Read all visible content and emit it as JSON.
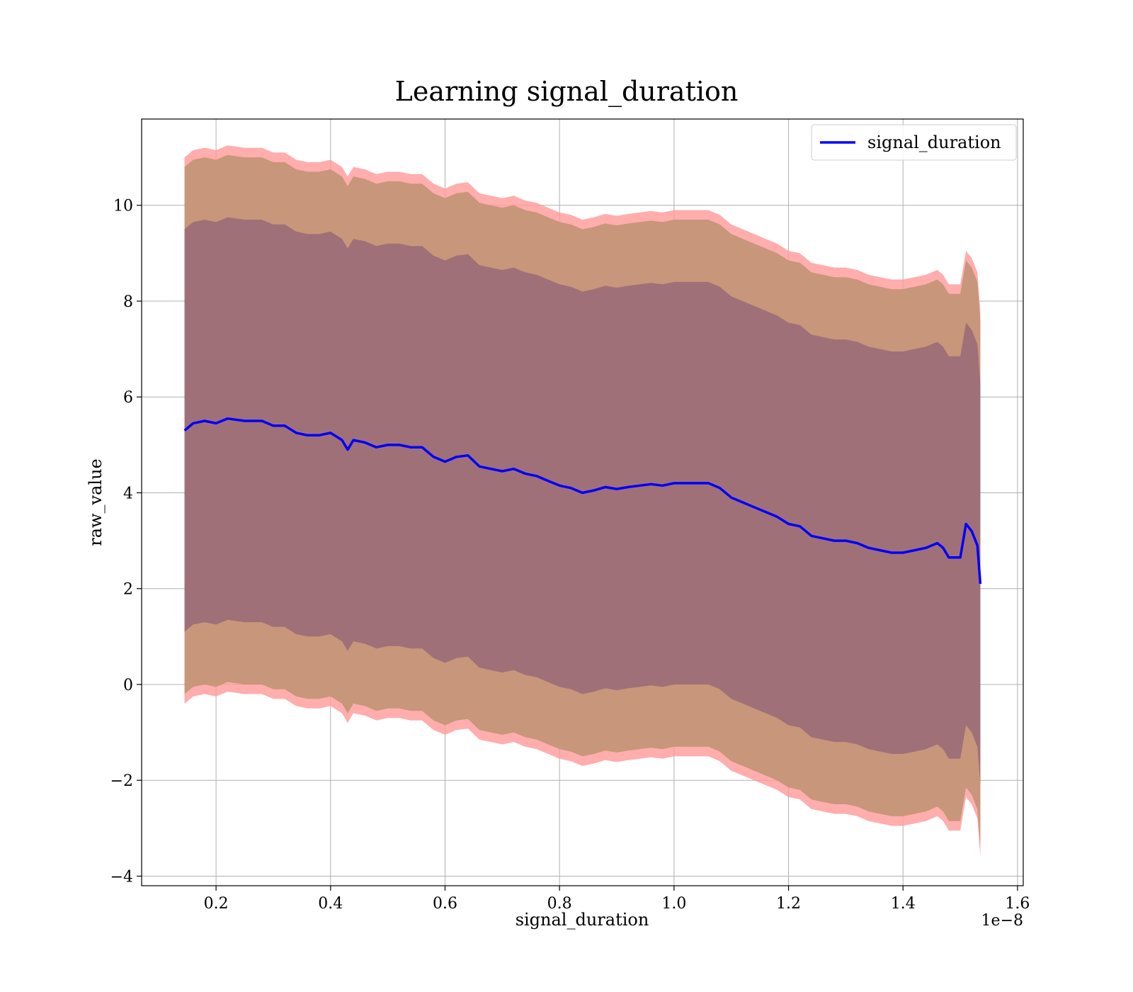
{
  "chart_data": {
    "type": "line",
    "title": "Learning signal_duration",
    "xlabel": "signal_duration",
    "ylabel": "raw_value",
    "x_offset_label": "1e−8",
    "xlim": [
      0.07,
      1.61
    ],
    "ylim": [
      -4.2,
      11.8
    ],
    "x_ticks": [
      0.2,
      0.4,
      0.6,
      0.8,
      1.0,
      1.2,
      1.4,
      1.6
    ],
    "x_tick_labels": [
      "0.2",
      "0.4",
      "0.6",
      "0.8",
      "1.0",
      "1.2",
      "1.4",
      "1.6"
    ],
    "y_ticks": [
      -4,
      -2,
      0,
      2,
      4,
      6,
      8,
      10
    ],
    "y_tick_labels": [
      "−4",
      "−2",
      "0",
      "2",
      "4",
      "6",
      "8",
      "10"
    ],
    "grid": true,
    "legend_position": "top-right",
    "colors": {
      "line": "#0000ff",
      "band_outer": "#ff9999",
      "band_middle": "#c8967a",
      "band_inner": "#a07078",
      "grid": "#b0b0b0"
    },
    "series": [
      {
        "name": "signal_duration",
        "x": [
          0.145,
          0.16,
          0.18,
          0.2,
          0.22,
          0.25,
          0.28,
          0.3,
          0.32,
          0.34,
          0.36,
          0.38,
          0.4,
          0.42,
          0.43,
          0.44,
          0.46,
          0.48,
          0.5,
          0.52,
          0.54,
          0.56,
          0.58,
          0.6,
          0.62,
          0.64,
          0.66,
          0.68,
          0.7,
          0.72,
          0.74,
          0.76,
          0.78,
          0.8,
          0.82,
          0.84,
          0.86,
          0.88,
          0.9,
          0.92,
          0.94,
          0.96,
          0.98,
          1.0,
          1.02,
          1.04,
          1.06,
          1.08,
          1.1,
          1.12,
          1.14,
          1.16,
          1.18,
          1.2,
          1.22,
          1.24,
          1.26,
          1.28,
          1.3,
          1.32,
          1.34,
          1.36,
          1.38,
          1.4,
          1.42,
          1.44,
          1.45,
          1.46,
          1.47,
          1.48,
          1.5,
          1.51,
          1.52,
          1.53,
          1.535
        ],
        "y": [
          5.3,
          5.45,
          5.5,
          5.45,
          5.55,
          5.5,
          5.5,
          5.4,
          5.4,
          5.25,
          5.2,
          5.2,
          5.25,
          5.1,
          4.9,
          5.1,
          5.05,
          4.95,
          5.0,
          5.0,
          4.95,
          4.95,
          4.75,
          4.65,
          4.75,
          4.78,
          4.55,
          4.5,
          4.45,
          4.5,
          4.4,
          4.35,
          4.25,
          4.15,
          4.1,
          4.0,
          4.05,
          4.12,
          4.08,
          4.12,
          4.15,
          4.18,
          4.15,
          4.2,
          4.2,
          4.2,
          4.2,
          4.1,
          3.9,
          3.8,
          3.7,
          3.6,
          3.5,
          3.35,
          3.3,
          3.1,
          3.05,
          3.0,
          3.0,
          2.95,
          2.85,
          2.8,
          2.75,
          2.75,
          2.8,
          2.85,
          2.9,
          2.95,
          2.85,
          2.65,
          2.65,
          3.35,
          3.2,
          2.9,
          2.1
        ],
        "band_outer_half_width": 5.7,
        "band_middle_half_width": 5.5,
        "band_inner_half_width": 4.2
      }
    ]
  }
}
